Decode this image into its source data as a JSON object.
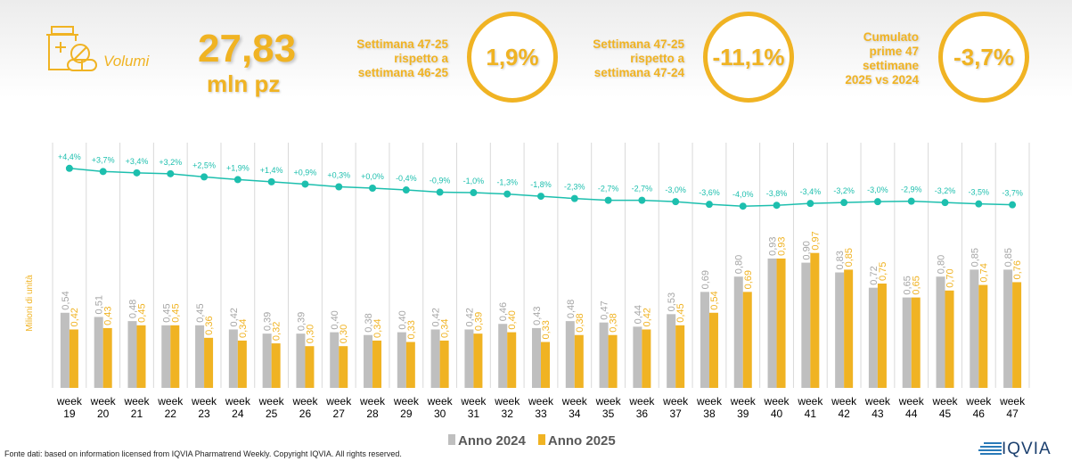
{
  "header": {
    "icon": "medicine-bottle-pills-icon",
    "category": "Volumi",
    "total_value": "27,83",
    "total_unit": "mln pz",
    "kpis": [
      {
        "label_lines": [
          "Settimana 47-25",
          "rispetto a",
          "settimana 46-25"
        ],
        "value": "1,9%"
      },
      {
        "label_lines": [
          "Settimana 47-25",
          "rispetto a",
          "settimana 47-24"
        ],
        "value": "-11,1%"
      },
      {
        "label_lines": [
          "Cumulato",
          "prime 47",
          "settimane",
          "2025 vs 2024"
        ],
        "value": "-3,7%"
      }
    ]
  },
  "chart_data": {
    "type": "bar",
    "ylabel": "Milioni di unità",
    "categories": [
      "week 19",
      "week 20",
      "week 21",
      "week 22",
      "week 23",
      "week 24",
      "week 25",
      "week 26",
      "week 27",
      "week 28",
      "week 29",
      "week 30",
      "week 31",
      "week 32",
      "week 33",
      "week 34",
      "week 35",
      "week 36",
      "week 37",
      "week 38",
      "week 39",
      "week 40",
      "week 41",
      "week 42",
      "week 43",
      "week 44",
      "week 45",
      "week 46",
      "week 47"
    ],
    "series": [
      {
        "name": "Anno 2024",
        "color": "#bfbfbf",
        "values": [
          0.54,
          0.51,
          0.48,
          0.45,
          0.45,
          0.42,
          0.39,
          0.39,
          0.4,
          0.38,
          0.4,
          0.42,
          0.42,
          0.46,
          0.43,
          0.48,
          0.47,
          0.44,
          0.53,
          0.69,
          0.8,
          0.93,
          0.9,
          0.83,
          0.72,
          0.65,
          0.8,
          0.85,
          0.85
        ],
        "labels": [
          "0,54",
          "0,51",
          "0,48",
          "0,45",
          "0,45",
          "0,42",
          "0,39",
          "0,39",
          "0,40",
          "0,38",
          "0,40",
          "0,42",
          "0,42",
          "0,46",
          "0,43",
          "0,48",
          "0,47",
          "0,44",
          "0,53",
          "0,69",
          "0,80",
          "0,93",
          "0,90",
          "0,83",
          "0,72",
          "0,65",
          "0,80",
          "0,85",
          "0,85"
        ]
      },
      {
        "name": "Anno 2025",
        "color": "#f0b323",
        "values": [
          0.42,
          0.43,
          0.45,
          0.45,
          0.36,
          0.34,
          0.32,
          0.3,
          0.3,
          0.34,
          0.33,
          0.34,
          0.39,
          0.4,
          0.33,
          0.38,
          0.38,
          0.42,
          0.45,
          0.54,
          0.69,
          0.93,
          0.97,
          0.85,
          0.75,
          0.65,
          0.7,
          0.74,
          0.76
        ],
        "labels": [
          "0,42",
          "0,43",
          "0,45",
          "0,45",
          "0,36",
          "0,34",
          "0,32",
          "0,30",
          "0,30",
          "0,34",
          "0,33",
          "0,34",
          "0,39",
          "0,40",
          "0,33",
          "0,38",
          "0,38",
          "0,42",
          "0,45",
          "0,54",
          "0,69",
          "0,93",
          "0,97",
          "0,85",
          "0,75",
          "0,65",
          "0,70",
          "0,74",
          "0,76"
        ]
      }
    ],
    "cumulative_line": {
      "color": "#1dbfae",
      "values": [
        4.4,
        3.7,
        3.4,
        3.2,
        2.5,
        1.9,
        1.4,
        0.9,
        0.3,
        0.0,
        -0.4,
        -0.9,
        -1.0,
        -1.3,
        -1.8,
        -2.3,
        -2.7,
        -2.7,
        -3.0,
        -3.6,
        -4.0,
        -3.8,
        -3.4,
        -3.2,
        -3.0,
        -2.9,
        -3.2,
        -3.5,
        -3.7
      ],
      "labels": [
        "+4,4%",
        "+3,7%",
        "+3,4%",
        "+3,2%",
        "+2,5%",
        "+1,9%",
        "+1,4%",
        "+0,9%",
        "+0,3%",
        "+0,0%",
        "-0,4%",
        "-0,9%",
        "-1,0%",
        "-1,3%",
        "-1,8%",
        "-2,3%",
        "-2,7%",
        "-2,7%",
        "-3,0%",
        "-3,6%",
        "-4,0%",
        "-3,8%",
        "-3,4%",
        "-3,2%",
        "-3,0%",
        "-2,9%",
        "-3,2%",
        "-3,5%",
        "-3,7%"
      ]
    },
    "grid": "vertical",
    "legend_position": "bottom"
  },
  "footer": {
    "source": "Fonte dati: based on information licensed from IQVIA Pharmatrend Weekly. Copyright IQVIA. All rights reserved.",
    "logo_text": "IQVIA"
  }
}
